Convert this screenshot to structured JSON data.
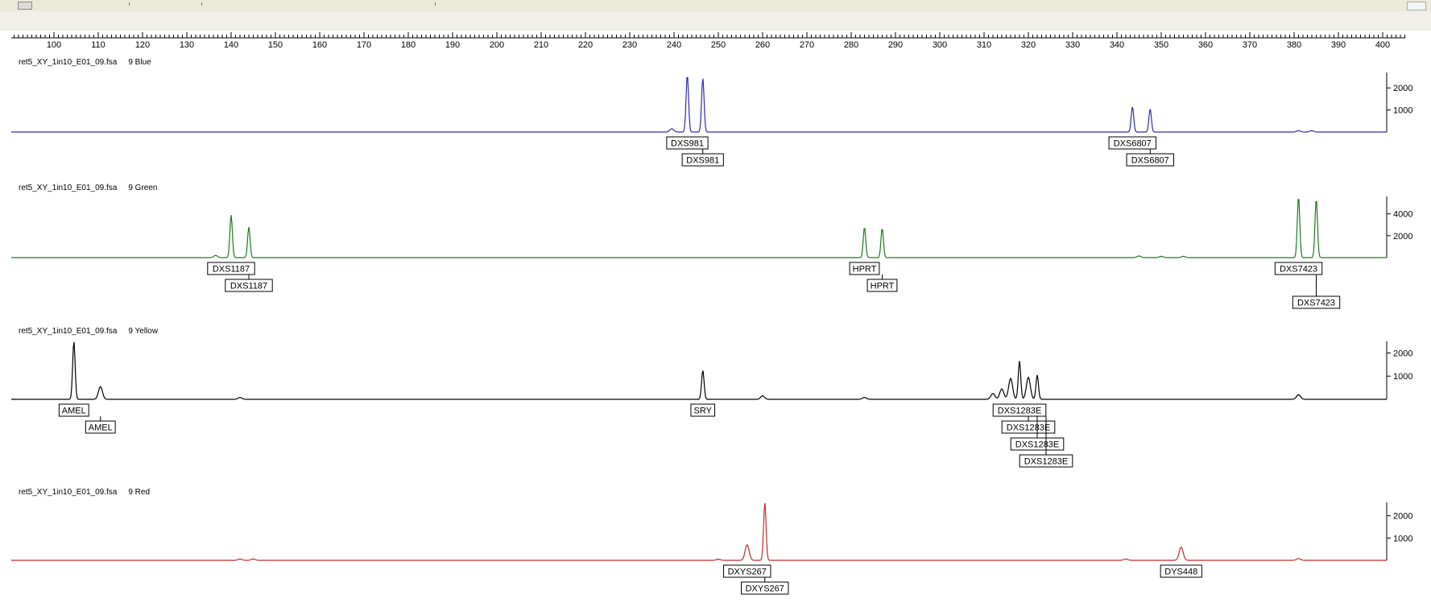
{
  "chart_data": {
    "type": "line",
    "x_axis": {
      "min": 100,
      "max": 400,
      "step": 10,
      "tick_labels": [
        "100",
        "110",
        "120",
        "130",
        "140",
        "150",
        "160",
        "170",
        "180",
        "190",
        "200",
        "210",
        "220",
        "230",
        "240",
        "250",
        "260",
        "270",
        "280",
        "290",
        "300",
        "310",
        "320",
        "330",
        "340",
        "350",
        "360",
        "370",
        "380",
        "390",
        "400"
      ]
    },
    "panels": [
      {
        "file": "ret5_XY_1in10_E01_09.fsa",
        "sample": "9",
        "dye": "Blue",
        "color": "#2b2bb8",
        "y_ticks": [
          1000,
          2000
        ],
        "ymax": 2700,
        "peaks": [
          {
            "x": 239.5,
            "h": 150
          },
          {
            "x": 243,
            "h": 2600
          },
          {
            "x": 246.5,
            "h": 2450
          },
          {
            "x": 343.5,
            "h": 1150
          },
          {
            "x": 347.5,
            "h": 1050
          },
          {
            "x": 381,
            "h": 60
          },
          {
            "x": 384,
            "h": 60
          }
        ],
        "labels": [
          {
            "text": "DXS981",
            "x": 243,
            "row": 0
          },
          {
            "text": "DXS981",
            "x": 246.5,
            "row": 1
          },
          {
            "text": "DXS6807",
            "x": 343.5,
            "row": 0
          },
          {
            "text": "DXS6807",
            "x": 347.5,
            "row": 1
          }
        ]
      },
      {
        "file": "ret5_XY_1in10_E01_09.fsa",
        "sample": "9",
        "dye": "Green",
        "color": "#1c7a1c",
        "y_ticks": [
          2000,
          4000
        ],
        "ymax": 5600,
        "peaks": [
          {
            "x": 136.5,
            "h": 200
          },
          {
            "x": 140,
            "h": 3900
          },
          {
            "x": 144,
            "h": 2800
          },
          {
            "x": 283,
            "h": 2800
          },
          {
            "x": 287,
            "h": 2700
          },
          {
            "x": 345,
            "h": 150
          },
          {
            "x": 350,
            "h": 120
          },
          {
            "x": 355,
            "h": 120
          },
          {
            "x": 381,
            "h": 5600
          },
          {
            "x": 385,
            "h": 5400
          }
        ],
        "labels": [
          {
            "text": "DXS1187",
            "x": 140,
            "row": 0
          },
          {
            "text": "DXS1187",
            "x": 144,
            "row": 1
          },
          {
            "text": "HPRT",
            "x": 283,
            "row": 0
          },
          {
            "text": "HPRT",
            "x": 287,
            "row": 1
          },
          {
            "text": "DXS7423",
            "x": 381,
            "row": 0
          },
          {
            "text": "DXS7423",
            "x": 385,
            "row": 2
          }
        ]
      },
      {
        "file": "ret5_XY_1in10_E01_09.fsa",
        "sample": "9",
        "dye": "Yellow",
        "color": "#000000",
        "y_ticks": [
          1000,
          2000
        ],
        "ymax": 2500,
        "peaks": [
          {
            "x": 104.5,
            "h": 2500
          },
          {
            "x": 110.5,
            "h": 550
          },
          {
            "x": 142,
            "h": 80
          },
          {
            "x": 246.5,
            "h": 1250
          },
          {
            "x": 260,
            "h": 150
          },
          {
            "x": 283,
            "h": 80
          },
          {
            "x": 312,
            "h": 250
          },
          {
            "x": 314,
            "h": 450
          },
          {
            "x": 316,
            "h": 900
          },
          {
            "x": 318,
            "h": 1650
          },
          {
            "x": 320,
            "h": 950
          },
          {
            "x": 322,
            "h": 1050
          },
          {
            "x": 381,
            "h": 200
          }
        ],
        "labels": [
          {
            "text": "AMEL",
            "x": 104.5,
            "row": 0
          },
          {
            "text": "AMEL",
            "x": 110.5,
            "row": 1
          },
          {
            "text": "SRY",
            "x": 246.5,
            "row": 0
          },
          {
            "text": "DXS1283E",
            "x": 318,
            "row": 0
          },
          {
            "text": "DXS1283E",
            "x": 320,
            "row": 1
          },
          {
            "text": "DXS1283E",
            "x": 322,
            "row": 2
          },
          {
            "text": "DXS1283E",
            "x": 324,
            "row": 3
          }
        ]
      },
      {
        "file": "ret5_XY_1in10_E01_09.fsa",
        "sample": "9",
        "dye": "Red",
        "color": "#c42b2b",
        "y_ticks": [
          1000,
          2000
        ],
        "ymax": 2600,
        "peaks": [
          {
            "x": 142,
            "h": 60
          },
          {
            "x": 145,
            "h": 60
          },
          {
            "x": 250,
            "h": 50
          },
          {
            "x": 256.5,
            "h": 700
          },
          {
            "x": 260.5,
            "h": 2600
          },
          {
            "x": 342,
            "h": 60
          },
          {
            "x": 354.5,
            "h": 600
          },
          {
            "x": 381,
            "h": 80
          }
        ],
        "labels": [
          {
            "text": "DXYS267",
            "x": 256.5,
            "row": 0
          },
          {
            "text": "DXYS267",
            "x": 260.5,
            "row": 1
          },
          {
            "text": "DYS448",
            "x": 354.5,
            "row": 0
          }
        ]
      }
    ]
  }
}
